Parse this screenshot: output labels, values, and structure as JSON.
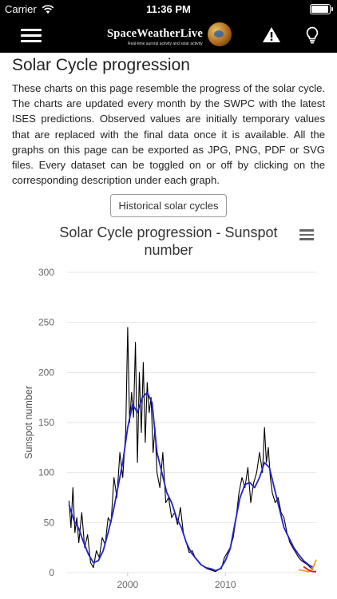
{
  "status_bar": {
    "carrier": "Carrier",
    "time": "11:36 PM",
    "battery_level": 0.95
  },
  "header": {
    "brand": "SpaceWeatherLive",
    "tagline": "Real-time auroral activity and solar activity",
    "icons": [
      "menu-icon",
      "alert-icon",
      "lightbulb-icon"
    ]
  },
  "page": {
    "title": "Solar Cycle progression",
    "description": "These charts on this page resemble the progress of the solar cycle. The charts are updated every month by the SWPC with the latest ISES predictions. Observed values are initially temporary values that are replaced with the final data once it is available. All the graphs on this page can be exported as JPG, PNG, PDF or SVG files. Every dataset can be toggled on or off by clicking on the corresponding description under each graph.",
    "historical_button": "Historical solar cycles"
  },
  "chart_data": {
    "type": "line",
    "title": "Solar Cycle progression - Sunspot number",
    "xlabel": "",
    "ylabel": "Sunspot number",
    "xlim": [
      1993.8,
      2019.3
    ],
    "ylim": [
      0,
      300
    ],
    "yticks": [
      0,
      50,
      100,
      150,
      200,
      250,
      300
    ],
    "xticks": [
      2000,
      2010
    ],
    "grid": true,
    "colors": {
      "monthly": "#000000",
      "smoothed": "#2222cc",
      "predicted": "#f0a020",
      "predicted_range": "#cc2222"
    },
    "series": [
      {
        "name": "",
        "role": "monthly",
        "x": [
          1994.0,
          1994.2,
          1994.4,
          1994.6,
          1994.8,
          1995.0,
          1995.3,
          1995.6,
          1995.9,
          1996.2,
          1996.5,
          1996.8,
          1997.1,
          1997.4,
          1997.7,
          1998.0,
          1998.3,
          1998.6,
          1998.9,
          1999.2,
          1999.5,
          1999.8,
          2000.0,
          2000.2,
          2000.4,
          2000.6,
          2000.8,
          2001.0,
          2001.2,
          2001.4,
          2001.6,
          2001.8,
          2002.0,
          2002.2,
          2002.4,
          2002.6,
          2002.8,
          2003.0,
          2003.3,
          2003.6,
          2003.9,
          2004.2,
          2004.5,
          2004.8,
          2005.1,
          2005.4,
          2005.7,
          2006.0,
          2006.3,
          2006.6,
          2006.9,
          2007.2,
          2007.5,
          2007.8,
          2008.1,
          2008.4,
          2008.7,
          2009.0,
          2009.3,
          2009.6,
          2009.9,
          2010.2,
          2010.5,
          2010.8,
          2011.1,
          2011.4,
          2011.7,
          2012.0,
          2012.3,
          2012.6,
          2012.9,
          2013.2,
          2013.5,
          2013.8,
          2014.0,
          2014.2,
          2014.4,
          2014.6,
          2014.8,
          2015.1,
          2015.4,
          2015.7,
          2016.0,
          2016.3,
          2016.6,
          2016.9,
          2017.2,
          2017.5,
          2017.8,
          2018.1,
          2018.4,
          2018.7,
          2019.0
        ],
        "values": [
          72,
          45,
          85,
          40,
          55,
          30,
          60,
          25,
          38,
          10,
          5,
          22,
          15,
          35,
          28,
          55,
          50,
          95,
          75,
          120,
          95,
          140,
          245,
          150,
          180,
          155,
          230,
          110,
          200,
          140,
          210,
          130,
          190,
          160,
          175,
          120,
          145,
          100,
          85,
          120,
          70,
          75,
          55,
          60,
          48,
          65,
          40,
          30,
          20,
          22,
          15,
          12,
          8,
          6,
          4,
          3,
          2,
          1,
          3,
          4,
          15,
          20,
          25,
          35,
          55,
          80,
          95,
          85,
          105,
          70,
          90,
          100,
          120,
          100,
          145,
          110,
          125,
          95,
          80,
          70,
          75,
          60,
          55,
          40,
          30,
          25,
          20,
          15,
          12,
          10,
          8,
          5,
          3
        ]
      },
      {
        "name": "",
        "role": "smoothed",
        "x": [
          1994.0,
          1994.5,
          1995.0,
          1995.5,
          1996.0,
          1996.5,
          1997.0,
          1997.5,
          1998.0,
          1998.5,
          1999.0,
          1999.5,
          2000.0,
          2000.5,
          2001.0,
          2001.5,
          2002.0,
          2002.5,
          2003.0,
          2003.5,
          2004.0,
          2004.5,
          2005.0,
          2005.5,
          2006.0,
          2006.5,
          2007.0,
          2007.5,
          2008.0,
          2008.5,
          2009.0,
          2009.5,
          2010.0,
          2010.5,
          2011.0,
          2011.5,
          2012.0,
          2012.5,
          2013.0,
          2013.5,
          2014.0,
          2014.5,
          2015.0,
          2015.5,
          2016.0,
          2016.5,
          2017.0,
          2017.5,
          2018.0,
          2018.5,
          2019.0
        ],
        "values": [
          68,
          52,
          44,
          30,
          18,
          10,
          12,
          22,
          40,
          60,
          85,
          110,
          145,
          168,
          160,
          175,
          180,
          170,
          120,
          100,
          80,
          70,
          55,
          45,
          30,
          20,
          14,
          8,
          5,
          4,
          2,
          4,
          12,
          24,
          50,
          75,
          88,
          90,
          85,
          95,
          110,
          105,
          85,
          65,
          45,
          35,
          25,
          18,
          12,
          8,
          5
        ]
      },
      {
        "name": "",
        "role": "predicted",
        "x": [
          2017.5,
          2018.0,
          2018.5,
          2019.0,
          2019.3
        ],
        "values": [
          3,
          2,
          1,
          5,
          13
        ]
      },
      {
        "name": "",
        "role": "predicted_range",
        "x": [
          2018.0,
          2018.6,
          2019.0,
          2019.3
        ],
        "values": [
          6,
          2,
          1,
          1
        ]
      }
    ]
  }
}
